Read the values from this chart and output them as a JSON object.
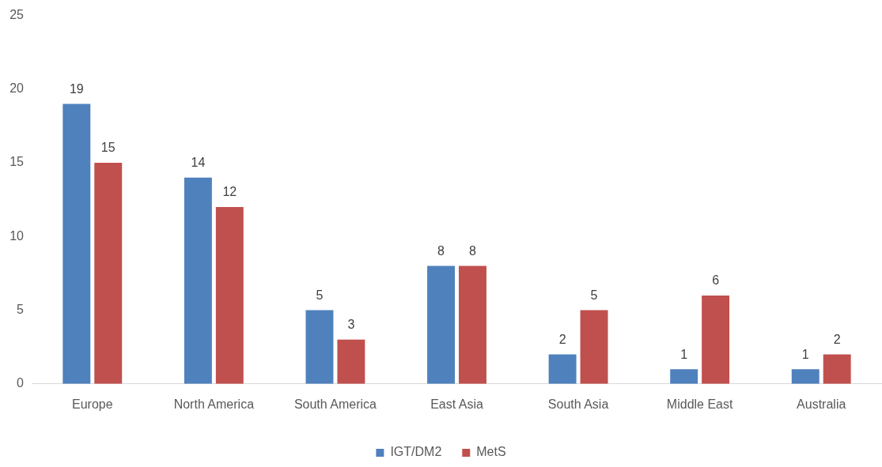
{
  "chart_data": {
    "type": "bar",
    "categories": [
      "Europe",
      "North America",
      "South America",
      "East Asia",
      "South Asia",
      "Middle East",
      "Australia"
    ],
    "series": [
      {
        "name": "IGT/DM2",
        "color": "#4f81bd",
        "values": [
          19,
          14,
          5,
          8,
          2,
          1,
          1
        ]
      },
      {
        "name": "MetS",
        "color": "#c0504d",
        "values": [
          15,
          12,
          3,
          8,
          5,
          6,
          2
        ]
      }
    ],
    "ylim": [
      0,
      25
    ],
    "yticks": [
      0,
      5,
      10,
      15,
      20,
      25
    ],
    "legend": "bottom",
    "data_labels": true
  }
}
